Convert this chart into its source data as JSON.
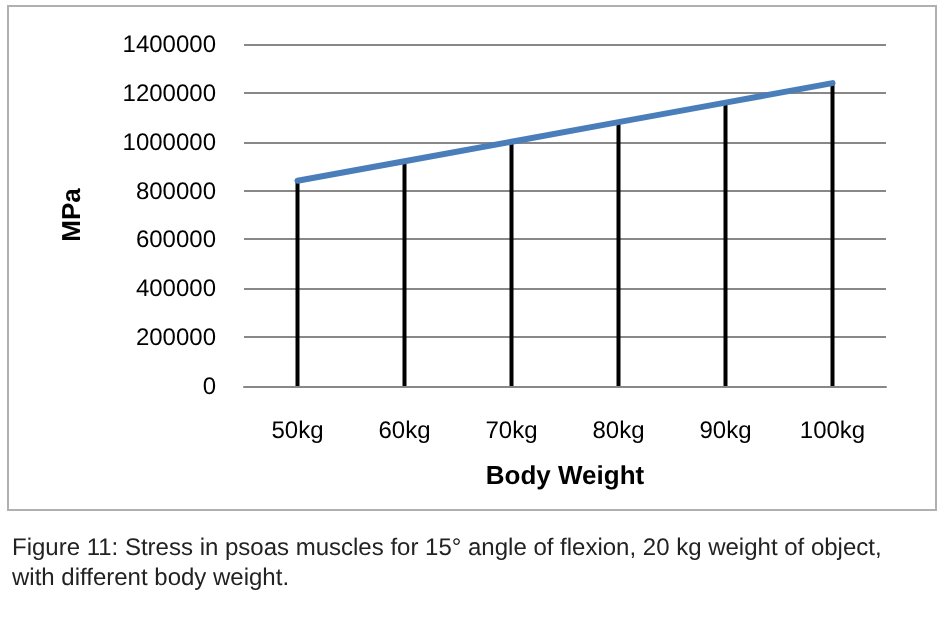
{
  "chart_data": {
    "type": "line",
    "xlabel": "Body Weight",
    "ylabel": "MPa",
    "categories": [
      "50kg",
      "60kg",
      "70kg",
      "80kg",
      "90kg",
      "100kg"
    ],
    "series": [
      {
        "color": "#4a7ebb",
        "values": [
          840000,
          920000,
          1000000,
          1080000,
          1160000,
          1240000
        ]
      },
      {
        "type": "bar",
        "color": "#000000",
        "values": [
          840000,
          920000,
          1000000,
          1080000,
          1160000,
          1240000
        ]
      }
    ],
    "ylim": [
      0,
      1400000
    ],
    "yticks": [
      0,
      200000,
      400000,
      600000,
      800000,
      1000000,
      1200000,
      1400000
    ],
    "grid": "y",
    "marker": "none",
    "line_style": "solid",
    "annotations": [
      "Figure 11: Stress in psoas muscles for 15° angle of flexion, 20 kg weight of object, with different body weight."
    ]
  }
}
